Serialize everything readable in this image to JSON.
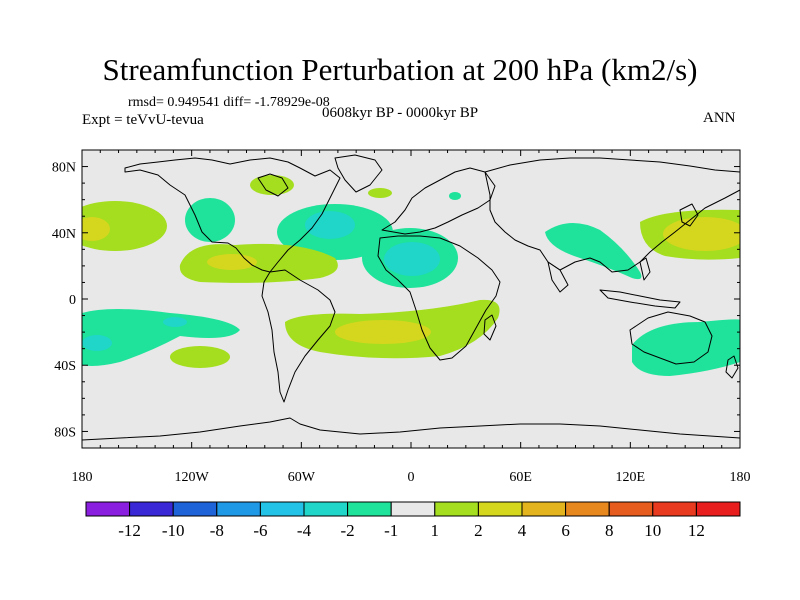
{
  "title": "Streamfunction Perturbation at 200 hPa (km2/s)",
  "stats_line": "rmsd= 0.949541  diff= -1.78929e-08",
  "experiment": "Expt = teVvU-tevua",
  "period": "0608kyr BP - 0000kyr BP",
  "season": "ANN",
  "map": {
    "lon_range": [
      -180,
      180
    ],
    "lat_range": [
      -90,
      90
    ],
    "lat_ticks": [
      {
        "v": 80,
        "label": "80N"
      },
      {
        "v": 40,
        "label": "40N"
      },
      {
        "v": 0,
        "label": "0"
      },
      {
        "v": -40,
        "label": "40S"
      },
      {
        "v": -80,
        "label": "80S"
      }
    ],
    "lon_ticks": [
      {
        "v": -180,
        "label": "180"
      },
      {
        "v": -120,
        "label": "120W"
      },
      {
        "v": -60,
        "label": "60W"
      },
      {
        "v": 0,
        "label": "0"
      },
      {
        "v": 60,
        "label": "60E"
      },
      {
        "v": 120,
        "label": "120E"
      },
      {
        "v": 180,
        "label": "180"
      }
    ],
    "background_color": "#e8e8e8"
  },
  "colorbar": {
    "labels": [
      "-12",
      "-10",
      "-8",
      "-6",
      "-4",
      "-2",
      "-1",
      "1",
      "2",
      "4",
      "6",
      "8",
      "10",
      "12"
    ],
    "colors": [
      "#8a1fe0",
      "#3a28d6",
      "#1f63d8",
      "#1f98e6",
      "#22c3e6",
      "#1fd6c8",
      "#1fe39a",
      "#e8e8e8",
      "#a4de1e",
      "#d4d71e",
      "#e3b41e",
      "#e6881e",
      "#e65c1e",
      "#e83a1e",
      "#e81e1e"
    ]
  }
}
